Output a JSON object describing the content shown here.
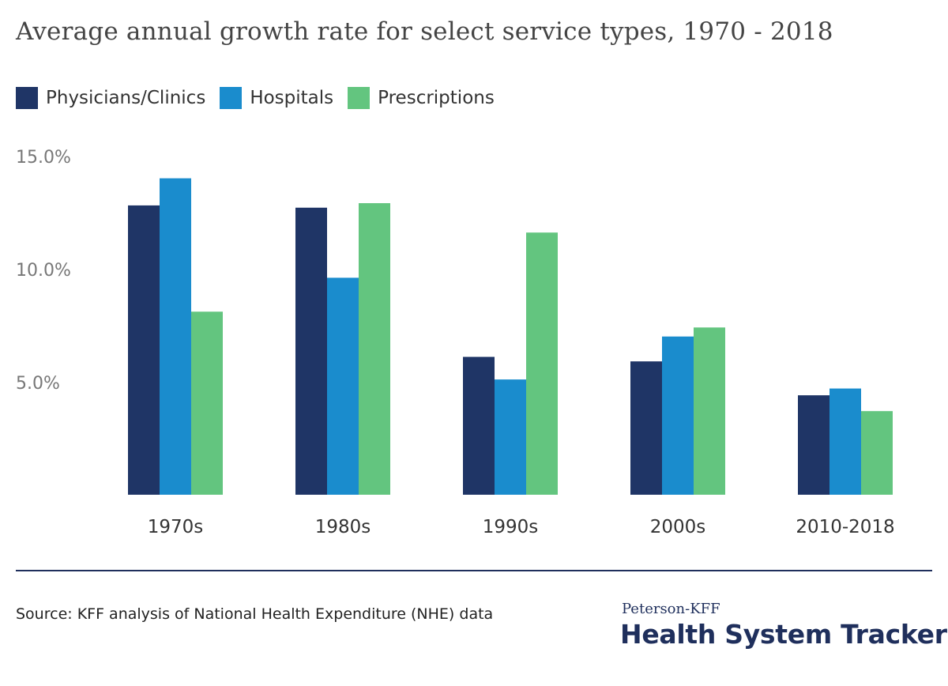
{
  "chart_data": {
    "type": "bar",
    "title": "Average annual growth rate for select service types, 1970 - 2018",
    "categories": [
      "1970s",
      "1980s",
      "1990s",
      "2000s",
      "2010-2018"
    ],
    "series": [
      {
        "name": "Physicians/Clinics",
        "color": "#1f3566",
        "values": [
          12.8,
          12.7,
          6.1,
          5.9,
          4.4
        ]
      },
      {
        "name": "Hospitals",
        "color": "#1a8ccd",
        "values": [
          14.0,
          9.6,
          5.1,
          7.0,
          4.7
        ]
      },
      {
        "name": "Prescriptions",
        "color": "#63c57f",
        "values": [
          8.1,
          12.9,
          11.6,
          7.4,
          3.7
        ]
      }
    ],
    "yticks": [
      "5.0%",
      "10.0%",
      "15.0%"
    ],
    "ytick_values": [
      5,
      10,
      15
    ],
    "ylim": [
      0,
      15
    ],
    "xlabel": "",
    "ylabel": "",
    "grid": false,
    "legend_position": "top-left"
  },
  "footer": {
    "source": "Source: KFF analysis of National Health Expenditure (NHE) data",
    "brand_top": "Peterson-KFF",
    "brand_main": "Health System Tracker"
  }
}
